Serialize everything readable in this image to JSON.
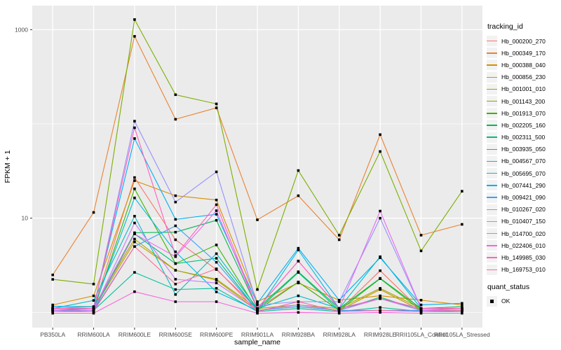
{
  "chart_data": {
    "type": "line",
    "xlabel": "sample_name",
    "ylabel": "FPKM + 1",
    "y_scale": "log10",
    "ylim": [
      0.69,
      1800
    ],
    "y_major_ticks": [
      {
        "label": "10",
        "value": 10
      },
      {
        "label": "1000",
        "value": 1000
      }
    ],
    "y_minor_ticks": [
      1,
      100
    ],
    "grid": "white-on-gray",
    "panel_bg": "#EBEBEB",
    "grid_color": "#FFFFFF",
    "point_color": "#000000",
    "legend_position": "right",
    "legend_title": "tracking_id",
    "legend2_title": "quant_status",
    "legend2_items": [
      {
        "label": "OK",
        "marker": "black-square"
      }
    ],
    "categories": [
      "PB350LA",
      "RRIM600LA",
      "RRIM600LE",
      "RRIM600SE",
      "RRIM600PE",
      "RRIM901LA",
      "RRIM928BA",
      "RRIM928LA",
      "RRIM928LE",
      "RRII105LA_Control",
      "RRII105LA_Stressed"
    ],
    "series": [
      {
        "name": "Hb_000200_270",
        "color": "#F8766D",
        "values": [
          1.1,
          1.1,
          27,
          5.9,
          2.85,
          1.1,
          2.1,
          1.05,
          2.77,
          1.05,
          1.1
        ]
      },
      {
        "name": "Hb_000349_170",
        "color": "#EA8331",
        "values": [
          2.5,
          11.5,
          850,
          112,
          148,
          9.6,
          17.3,
          5.9,
          77,
          6.6,
          8.6
        ]
      },
      {
        "name": "Hb_000388_040",
        "color": "#D89000",
        "values": [
          1.2,
          1.5,
          25,
          17.3,
          15.6,
          1.3,
          2.05,
          1.35,
          1.5,
          1.35,
          1.2
        ]
      },
      {
        "name": "Hb_000856_230",
        "color": "#C09B00",
        "values": [
          1.05,
          1.1,
          5.6,
          2.8,
          2.2,
          1.05,
          1.15,
          1.05,
          1.75,
          1.05,
          1.05
        ]
      },
      {
        "name": "Hb_001001_010",
        "color": "#A3A500",
        "values": [
          1.1,
          1.15,
          6.0,
          2.8,
          2.25,
          1.1,
          1.2,
          1.1,
          1.8,
          1.1,
          1.1
        ]
      },
      {
        "name": "Hb_001143_200",
        "color": "#7CAE00",
        "values": [
          2.24,
          2.0,
          1280,
          204,
          163,
          1.75,
          32,
          6.6,
          51,
          4.5,
          19.3
        ]
      },
      {
        "name": "Hb_001913_070",
        "color": "#39B600",
        "values": [
          1.05,
          1.05,
          20.5,
          3.3,
          5.2,
          1.05,
          2.1,
          1.05,
          2.28,
          1.05,
          1.05
        ]
      },
      {
        "name": "Hb_002205_160",
        "color": "#00BB4E",
        "values": [
          1.1,
          1.1,
          7.0,
          7.1,
          9.5,
          1.1,
          2.7,
          1.1,
          2.3,
          1.1,
          1.15
        ]
      },
      {
        "name": "Hb_002311_500",
        "color": "#00C079",
        "values": [
          1.05,
          1.05,
          6.8,
          3.3,
          3.75,
          1.05,
          2.65,
          1.05,
          1.45,
          1.05,
          1.05
        ]
      },
      {
        "name": "Hb_003935_050",
        "color": "#00C19C",
        "values": [
          1.02,
          1.05,
          2.66,
          1.75,
          1.8,
          1.02,
          1.1,
          1.02,
          1.13,
          1.02,
          1.02
        ]
      },
      {
        "name": "Hb_004567_070",
        "color": "#00BFC4",
        "values": [
          1.1,
          1.34,
          10.5,
          1.55,
          4.2,
          1.1,
          1.5,
          1.1,
          3.9,
          1.1,
          1.1
        ]
      },
      {
        "name": "Hb_005695_070",
        "color": "#00BAE0",
        "values": [
          1.05,
          1.1,
          16.4,
          4.4,
          1.65,
          1.05,
          4.6,
          1.1,
          1.4,
          1.05,
          1.05
        ]
      },
      {
        "name": "Hb_007441_290",
        "color": "#00B0F6",
        "values": [
          1.16,
          1.15,
          70,
          9.7,
          11.0,
          1.25,
          4.8,
          1.35,
          3.8,
          1.2,
          1.25
        ]
      },
      {
        "name": "Hb_009421_090",
        "color": "#35A2FF",
        "values": [
          1.05,
          1.05,
          5.0,
          8.3,
          3.4,
          1.05,
          1.15,
          1.05,
          1.05,
          1.05,
          1.05
        ]
      },
      {
        "name": "Hb_010267_020",
        "color": "#9590FF",
        "values": [
          1.1,
          1.1,
          107,
          14.8,
          31,
          1.2,
          1.3,
          1.3,
          10.0,
          1.1,
          1.1
        ]
      },
      {
        "name": "Hb_010407_150",
        "color": "#C77CFF",
        "values": [
          1.05,
          1.05,
          8.9,
          2.25,
          2.05,
          1.05,
          1.2,
          1.05,
          1.4,
          1.05,
          1.05
        ]
      },
      {
        "name": "Hb_014700_020",
        "color": "#E76BF3",
        "values": [
          1.1,
          1.1,
          6.8,
          3.9,
          12.0,
          1.1,
          3.5,
          1.1,
          11.9,
          1.1,
          1.1
        ]
      },
      {
        "name": "Hb_022406_010",
        "color": "#FA62DB",
        "values": [
          0.98,
          0.98,
          1.66,
          1.3,
          1.3,
          0.98,
          1.0,
          0.98,
          1.0,
          0.98,
          0.98
        ]
      },
      {
        "name": "Hb_149985_030",
        "color": "#FF62BC",
        "values": [
          1.1,
          1.1,
          91,
          4.0,
          13.9,
          1.1,
          3.5,
          1.1,
          1.4,
          1.1,
          1.1
        ]
      },
      {
        "name": "Hb_169753_010",
        "color": "#FF6A98",
        "values": [
          1.02,
          1.02,
          5.0,
          2.0,
          2.9,
          1.02,
          1.3,
          1.02,
          1.05,
          1.02,
          1.05
        ]
      }
    ]
  }
}
